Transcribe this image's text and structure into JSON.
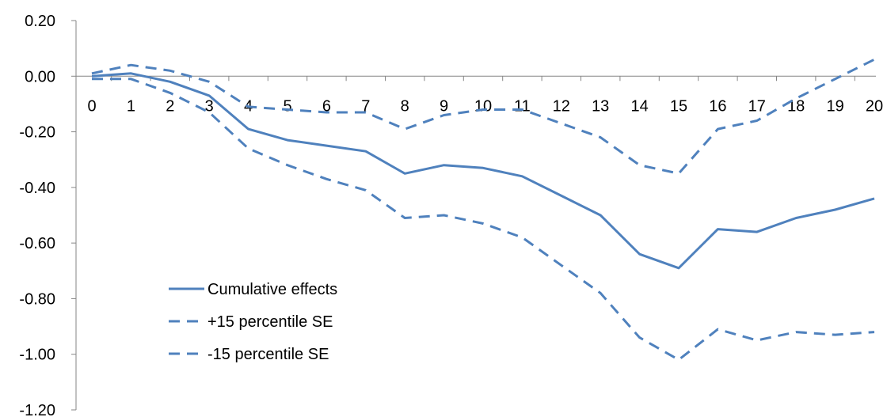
{
  "chart_data": {
    "type": "line",
    "x": [
      0,
      1,
      2,
      3,
      4,
      5,
      6,
      7,
      8,
      9,
      10,
      11,
      12,
      13,
      14,
      15,
      16,
      17,
      18,
      19,
      20
    ],
    "x_tick_labels": [
      "0",
      "1",
      "2",
      "3",
      "4",
      "5",
      "6",
      "7",
      "8",
      "9",
      "10",
      "11",
      "12",
      "13",
      "14",
      "15",
      "16",
      "17",
      "18",
      "19",
      "20"
    ],
    "y_tick_labels": [
      "0.20",
      "0.00",
      "-0.20",
      "-0.40",
      "-0.60",
      "-0.80",
      "-1.00",
      "-1.20"
    ],
    "ylim": [
      -1.2,
      0.2
    ],
    "y_ticks": [
      0.2,
      0.0,
      -0.2,
      -0.4,
      -0.6,
      -0.8,
      -1.0,
      -1.2
    ],
    "title": "",
    "xlabel": "",
    "ylabel": "",
    "grid": false,
    "legend_position": "bottom-left",
    "series_color": "#4F81BD",
    "series": [
      {
        "name": "Cumulative effects",
        "style": "solid",
        "values": [
          0.0,
          0.01,
          -0.02,
          -0.07,
          -0.19,
          -0.23,
          -0.25,
          -0.27,
          -0.35,
          -0.32,
          -0.33,
          -0.36,
          -0.43,
          -0.5,
          -0.64,
          -0.69,
          -0.55,
          -0.56,
          -0.51,
          -0.48,
          -0.44
        ]
      },
      {
        "name": "+15 percentile SE",
        "style": "dashed",
        "values": [
          0.01,
          0.04,
          0.02,
          -0.02,
          -0.11,
          -0.12,
          -0.13,
          -0.13,
          -0.19,
          -0.14,
          -0.12,
          -0.12,
          -0.17,
          -0.22,
          -0.32,
          -0.35,
          -0.19,
          -0.16,
          -0.08,
          -0.01,
          0.06
        ]
      },
      {
        "name": "-15 percentile SE",
        "style": "dashed",
        "values": [
          -0.01,
          -0.01,
          -0.06,
          -0.13,
          -0.26,
          -0.32,
          -0.37,
          -0.41,
          -0.51,
          -0.5,
          -0.53,
          -0.58,
          -0.68,
          -0.78,
          -0.94,
          -1.02,
          -0.91,
          -0.95,
          -0.92,
          -0.93,
          -0.92
        ]
      }
    ]
  }
}
